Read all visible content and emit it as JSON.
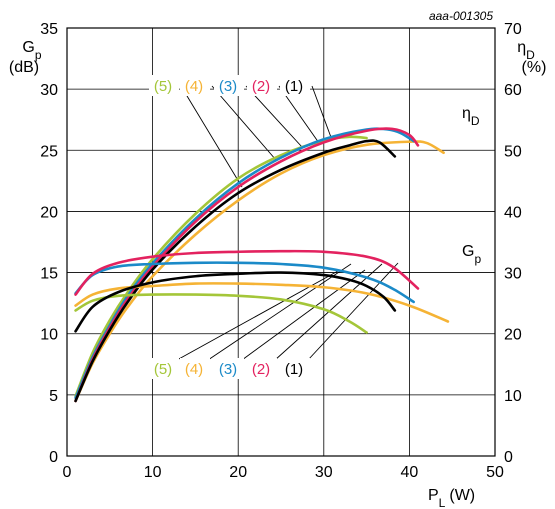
{
  "chart_data": {
    "type": "line",
    "reference": "aaa-001305",
    "x": {
      "label_main": "P",
      "label_sub": "L",
      "label_unit": "(W)",
      "range": [
        0,
        50
      ],
      "ticks": [
        0,
        10,
        20,
        30,
        40,
        50
      ]
    },
    "y_left": {
      "label_main": "G",
      "label_sub": "p",
      "unit": "(dB)",
      "range": [
        0,
        35
      ],
      "ticks": [
        0,
        5,
        10,
        15,
        20,
        25,
        30,
        35
      ]
    },
    "y_right": {
      "label_main": "η",
      "label_sub": "D",
      "unit": "(%)",
      "range": [
        0,
        70
      ],
      "ticks": [
        0,
        10,
        20,
        30,
        40,
        50,
        60,
        70
      ]
    },
    "grid": true,
    "group_labels": [
      {
        "main": "η",
        "sub": "D"
      },
      {
        "main": "G",
        "sub": "p"
      }
    ],
    "callouts": [
      {
        "label": "(5)",
        "color": "#a4c639"
      },
      {
        "label": "(4)",
        "color": "#f5b335"
      },
      {
        "label": "(3)",
        "color": "#1b8ac8"
      },
      {
        "label": "(2)",
        "color": "#e3225f"
      },
      {
        "label": "(1)",
        "color": "#000000"
      }
    ],
    "series": [
      {
        "name": "(1)",
        "quantity": "Gp",
        "axis": "left",
        "color": "#000000",
        "x": [
          1,
          3,
          6,
          10,
          15,
          20,
          25,
          30,
          33,
          35,
          37,
          38.3
        ],
        "y": [
          10.2,
          12.2,
          13.4,
          14.2,
          14.7,
          14.9,
          15.0,
          14.8,
          14.4,
          13.9,
          13.0,
          11.9
        ]
      },
      {
        "name": "(2)",
        "quantity": "Gp",
        "axis": "left",
        "color": "#e3225f",
        "x": [
          1,
          3,
          6,
          10,
          15,
          20,
          25,
          30,
          35,
          38,
          41
        ],
        "y": [
          13.2,
          14.9,
          15.8,
          16.3,
          16.6,
          16.7,
          16.75,
          16.7,
          16.3,
          15.5,
          13.7
        ]
      },
      {
        "name": "(3)",
        "quantity": "Gp",
        "axis": "left",
        "color": "#1b8ac8",
        "x": [
          1,
          3,
          6,
          10,
          15,
          20,
          25,
          30,
          35,
          38,
          40.5
        ],
        "y": [
          13.3,
          14.8,
          15.5,
          15.7,
          15.8,
          15.8,
          15.7,
          15.4,
          14.6,
          13.7,
          12.6
        ]
      },
      {
        "name": "(4)",
        "quantity": "Gp",
        "axis": "left",
        "color": "#f5b335",
        "x": [
          1,
          3,
          6,
          10,
          15,
          20,
          25,
          30,
          35,
          40,
          44.5
        ],
        "y": [
          12.3,
          13.2,
          13.7,
          13.9,
          14.1,
          14.1,
          14.0,
          13.8,
          13.3,
          12.3,
          11.0
        ]
      },
      {
        "name": "(5)",
        "quantity": "Gp",
        "axis": "left",
        "color": "#a4c639",
        "x": [
          1,
          3,
          6,
          10,
          15,
          20,
          25,
          30,
          33,
          35
        ],
        "y": [
          11.9,
          12.7,
          13.1,
          13.2,
          13.2,
          13.1,
          12.8,
          12.0,
          11.0,
          10.1
        ]
      },
      {
        "name": "(1)",
        "quantity": "ηD",
        "axis": "right",
        "color": "#000000",
        "x": [
          1,
          3,
          5,
          7,
          10,
          15,
          20,
          25,
          30,
          33,
          35,
          36.5,
          38.3
        ],
        "y": [
          9,
          15.5,
          20.6,
          25,
          30.5,
          37.5,
          43,
          46.8,
          49.6,
          50.8,
          51.5,
          51.3,
          49
        ]
      },
      {
        "name": "(2)",
        "quantity": "ηD",
        "axis": "right",
        "color": "#e3225f",
        "x": [
          1,
          3,
          5,
          7,
          10,
          15,
          20,
          25,
          30,
          35,
          38,
          40,
          41
        ],
        "y": [
          9,
          15.8,
          21,
          25.5,
          31,
          38.3,
          44,
          48.2,
          51.3,
          53.2,
          53.5,
          52.5,
          50.8
        ]
      },
      {
        "name": "(3)",
        "quantity": "ηD",
        "axis": "right",
        "color": "#1b8ac8",
        "x": [
          1,
          3,
          5,
          7,
          10,
          15,
          20,
          25,
          30,
          35,
          37.5,
          39,
          40.5
        ],
        "y": [
          9.5,
          16.2,
          21.4,
          26,
          31.5,
          38.8,
          44.6,
          48.8,
          51.8,
          53.4,
          53.4,
          52.8,
          51.5
        ]
      },
      {
        "name": "(4)",
        "quantity": "ηD",
        "axis": "right",
        "color": "#f5b335",
        "x": [
          1,
          3,
          5,
          7,
          10,
          15,
          20,
          25,
          30,
          35,
          40,
          42,
          44
        ],
        "y": [
          9,
          15.2,
          20,
          24.2,
          29.4,
          36.2,
          41.8,
          46.2,
          49.2,
          50.9,
          51.4,
          51.2,
          49.6
        ]
      },
      {
        "name": "(5)",
        "quantity": "ηD",
        "axis": "right",
        "color": "#a4c639",
        "x": [
          1,
          3,
          5,
          7,
          10,
          15,
          20,
          25,
          30,
          33,
          35
        ],
        "y": [
          9.8,
          16.9,
          22.2,
          26.6,
          32.2,
          39.6,
          45.4,
          49.2,
          51.6,
          52.2,
          52
        ]
      }
    ]
  }
}
